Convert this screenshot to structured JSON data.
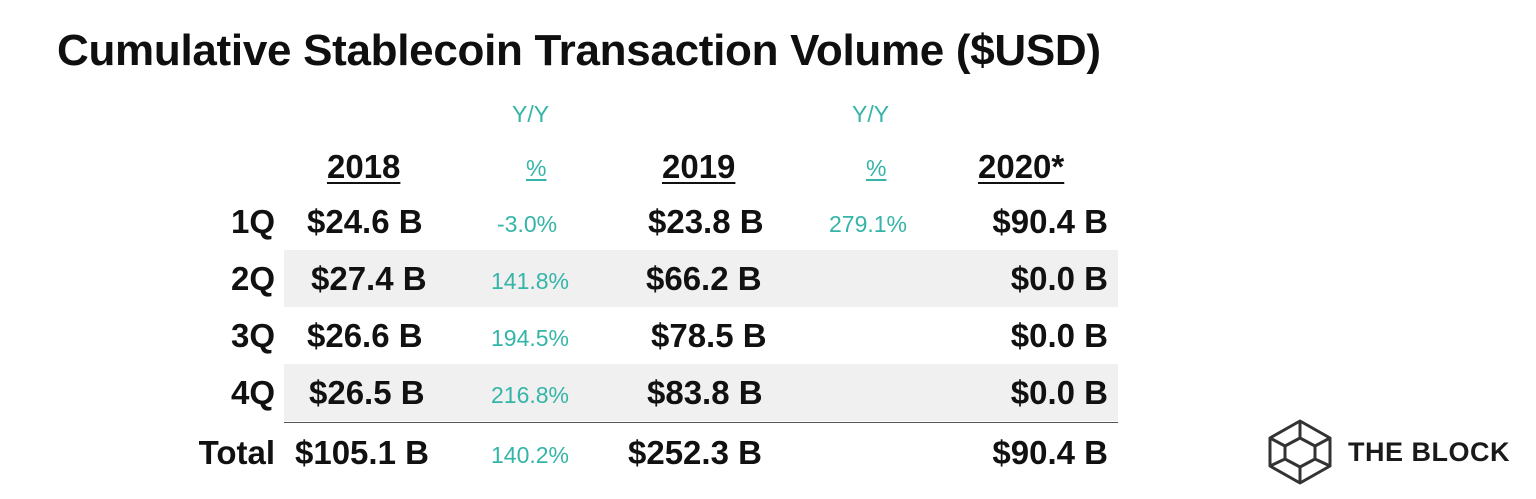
{
  "title": "Cumulative Stablecoin Transaction Volume ($USD)",
  "header": {
    "col_2018": "2018",
    "yy_1_top": "Y/Y",
    "yy_1_bottom": "%",
    "col_2019": "2019",
    "yy_2_top": "Y/Y",
    "yy_2_bottom": "%",
    "col_2020": "2020*"
  },
  "rows": [
    {
      "label": "1Q",
      "v2018": "$24.6 B",
      "yy1": "-3.0%",
      "v2019": "$23.8 B",
      "yy2": "279.1%",
      "v2020": "$90.4 B"
    },
    {
      "label": "2Q",
      "v2018": "$27.4 B",
      "yy1": "141.8%",
      "v2019": "$66.2 B",
      "yy2": "",
      "v2020": "$0.0 B"
    },
    {
      "label": "3Q",
      "v2018": "$26.6 B",
      "yy1": "194.5%",
      "v2019": "$78.5 B",
      "yy2": "",
      "v2020": "$0.0 B"
    },
    {
      "label": "4Q",
      "v2018": "$26.5 B",
      "yy1": "216.8%",
      "v2019": "$83.8 B",
      "yy2": "",
      "v2020": "$0.0 B"
    },
    {
      "label": "Total",
      "v2018": "$105.1 B",
      "yy1": "140.2%",
      "v2019": "$252.3 B",
      "yy2": "",
      "v2020": "$90.4 B"
    }
  ],
  "logo": {
    "text": "THE BLOCK",
    "icon": "cube-icon"
  },
  "colors": {
    "accent_teal": "#35b5a8",
    "band_gray": "#f0f0f0",
    "text_dark": "#111111"
  },
  "chart_data": {
    "type": "table",
    "title": "Cumulative Stablecoin Transaction Volume ($USD)",
    "columns": [
      "",
      "2018",
      "Y/Y %",
      "2019",
      "Y/Y %",
      "2020*"
    ],
    "rows": [
      [
        "1Q",
        "$24.6 B",
        "-3.0%",
        "$23.8 B",
        "279.1%",
        "$90.4 B"
      ],
      [
        "2Q",
        "$27.4 B",
        "141.8%",
        "$66.2 B",
        "",
        "$0.0 B"
      ],
      [
        "3Q",
        "$26.6 B",
        "194.5%",
        "$78.5 B",
        "",
        "$0.0 B"
      ],
      [
        "4Q",
        "$26.5 B",
        "216.8%",
        "$83.8 B",
        "",
        "$0.0 B"
      ],
      [
        "Total",
        "$105.1 B",
        "140.2%",
        "$252.3 B",
        "",
        "$90.4 B"
      ]
    ]
  }
}
